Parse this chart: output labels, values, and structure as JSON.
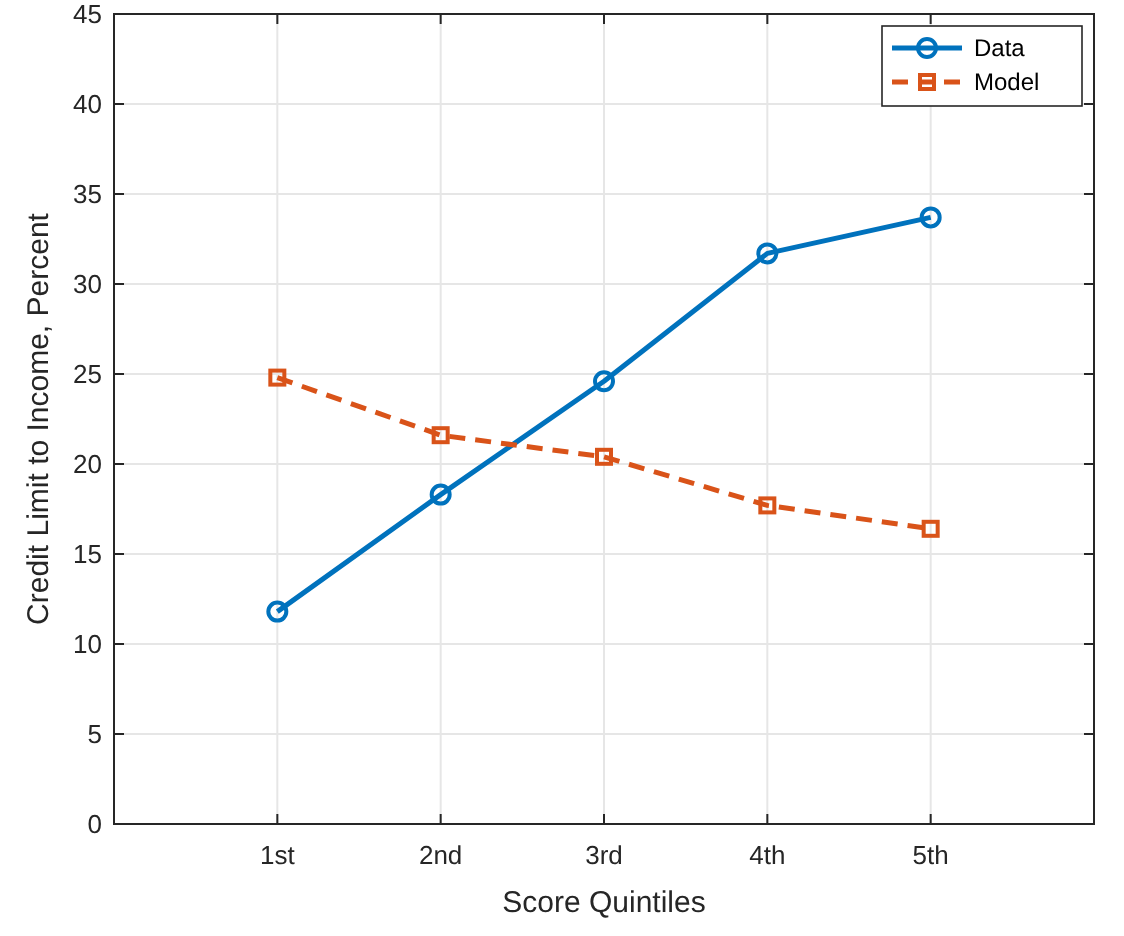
{
  "chart_data": {
    "type": "line",
    "xlabel": "Score Quintiles",
    "ylabel": "Credit Limit to Income, Percent",
    "categories": [
      "1st",
      "2nd",
      "3rd",
      "4th",
      "5th"
    ],
    "series": [
      {
        "name": "Data",
        "color": "#0072bd",
        "marker": "circle",
        "line_style": "solid",
        "values": [
          11.8,
          18.3,
          24.6,
          31.7,
          33.7
        ]
      },
      {
        "name": "Model",
        "color": "#d95319",
        "marker": "square",
        "line_style": "dashed",
        "values": [
          24.8,
          21.6,
          20.4,
          17.7,
          16.4
        ]
      }
    ],
    "ylim": [
      0,
      45
    ],
    "yticks": [
      0,
      5,
      10,
      15,
      20,
      25,
      30,
      35,
      40,
      45
    ],
    "grid": true,
    "legend": "top right"
  }
}
